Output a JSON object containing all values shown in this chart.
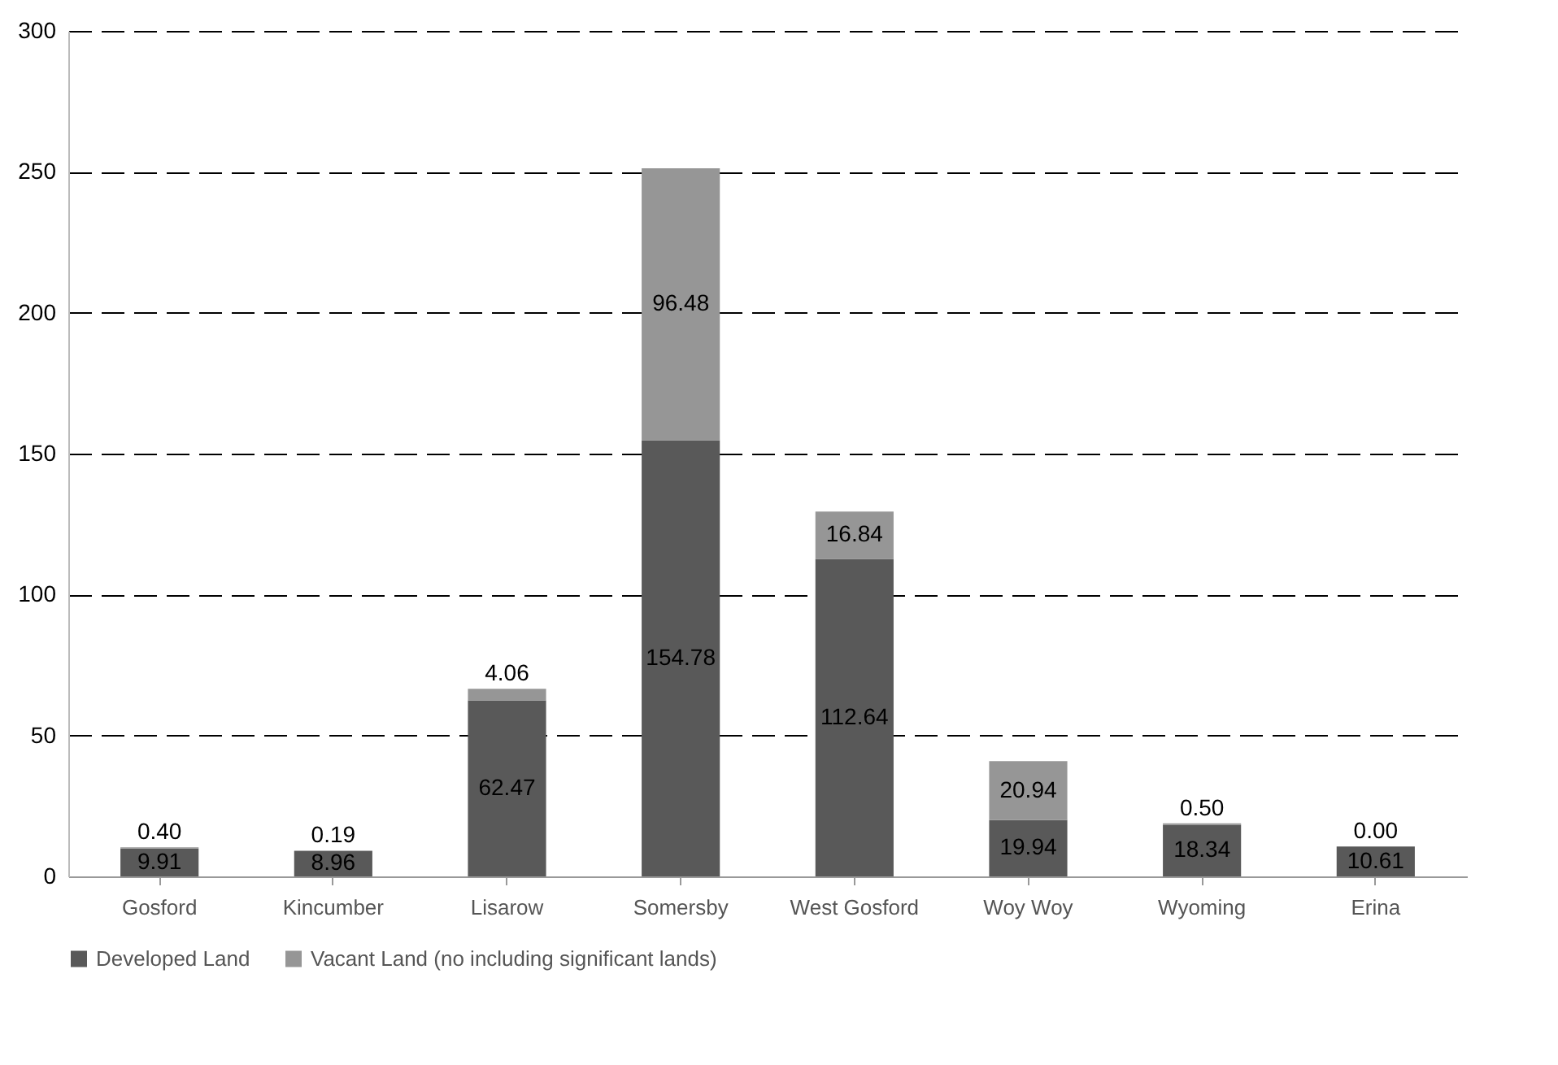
{
  "chart_data": {
    "type": "bar",
    "stacked": true,
    "categories": [
      "Gosford",
      "Kincumber",
      "Lisarow",
      "Somersby",
      "West Gosford",
      "Woy Woy",
      "Wyoming",
      "Erina"
    ],
    "series": [
      {
        "name": "Developed Land",
        "color": "#595959",
        "values": [
          9.91,
          8.96,
          62.47,
          154.78,
          112.64,
          19.94,
          18.34,
          10.61
        ],
        "value_labels": [
          "9.91",
          "8.96",
          "62.47",
          "154.78",
          "112.64",
          "19.94",
          "18.34",
          "10.61"
        ]
      },
      {
        "name": "Vacant Land (no including significant lands)",
        "color": "#969696",
        "values": [
          0.4,
          0.19,
          4.06,
          96.48,
          16.84,
          20.94,
          0.5,
          0.0
        ],
        "value_labels": [
          "0.40",
          "0.19",
          "4.06",
          "96.48",
          "16.84",
          "20.94",
          "0.50",
          "0.00"
        ]
      }
    ],
    "ylim": [
      0,
      300
    ],
    "yticks": [
      0,
      50,
      100,
      150,
      200,
      250,
      300
    ],
    "grid": "y",
    "legend": "bottom"
  }
}
